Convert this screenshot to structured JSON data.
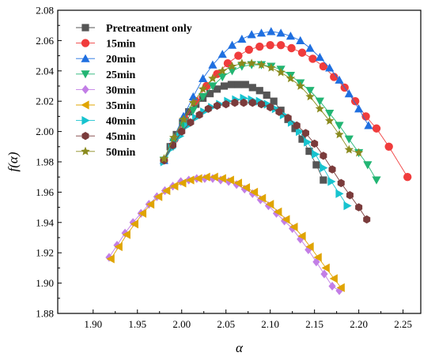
{
  "chart_data": {
    "type": "scatter",
    "title": "",
    "xlabel": "α",
    "ylabel": "f(α)",
    "xlim": [
      1.86,
      2.27
    ],
    "ylim": [
      1.88,
      2.08
    ],
    "xticks": [
      1.9,
      1.95,
      2.0,
      2.05,
      2.1,
      2.15,
      2.2,
      2.25
    ],
    "yticks": [
      1.88,
      1.9,
      1.92,
      1.94,
      1.96,
      1.98,
      2.0,
      2.02,
      2.04,
      2.06,
      2.08
    ],
    "xtick_labels": [
      "1.90",
      "1.95",
      "2.00",
      "2.05",
      "2.10",
      "2.15",
      "2.20",
      "2.25"
    ],
    "ytick_labels": [
      "1.88",
      "1.90",
      "1.92",
      "1.94",
      "1.96",
      "1.98",
      "2.00",
      "2.02",
      "2.04",
      "2.06",
      "2.08"
    ],
    "grid": false,
    "legend_position": "top-left",
    "series": [
      {
        "name": "Pretreatment only",
        "marker": "square",
        "color": "#555555",
        "x": [
          1.98,
          1.987,
          1.994,
          2.001,
          2.008,
          2.016,
          2.024,
          2.032,
          2.04,
          2.048,
          2.056,
          2.064,
          2.072,
          2.08,
          2.088,
          2.096,
          2.104,
          2.112,
          2.12,
          2.128,
          2.136,
          2.144,
          2.152,
          2.16
        ],
        "y": [
          1.981,
          1.99,
          1.998,
          2.006,
          2.013,
          2.018,
          2.022,
          2.025,
          2.028,
          2.03,
          2.031,
          2.031,
          2.031,
          2.029,
          2.027,
          2.024,
          2.02,
          2.014,
          2.008,
          2.002,
          1.995,
          1.987,
          1.978,
          1.968
        ]
      },
      {
        "name": "15min",
        "marker": "circle",
        "color": "#f03c3c",
        "x": [
          1.98,
          1.992,
          2.004,
          2.016,
          2.028,
          2.04,
          2.052,
          2.064,
          2.076,
          2.088,
          2.1,
          2.112,
          2.124,
          2.136,
          2.148,
          2.16,
          2.172,
          2.184,
          2.196,
          2.208,
          2.22,
          2.234,
          2.255
        ],
        "y": [
          1.981,
          1.995,
          2.008,
          2.02,
          2.03,
          2.038,
          2.045,
          2.05,
          2.054,
          2.056,
          2.057,
          2.057,
          2.055,
          2.052,
          2.048,
          2.043,
          2.036,
          2.029,
          2.02,
          2.01,
          2.002,
          1.99,
          1.97
        ]
      },
      {
        "name": "20min",
        "marker": "triangle-up",
        "color": "#1f6fe0",
        "x": [
          1.98,
          1.991,
          2.002,
          2.013,
          2.024,
          2.035,
          2.046,
          2.057,
          2.068,
          2.079,
          2.09,
          2.101,
          2.112,
          2.123,
          2.134,
          2.145,
          2.156,
          2.167,
          2.178,
          2.189,
          2.2,
          2.211
        ],
        "y": [
          1.981,
          1.996,
          2.01,
          2.023,
          2.035,
          2.044,
          2.051,
          2.057,
          2.061,
          2.064,
          2.065,
          2.066,
          2.065,
          2.063,
          2.06,
          2.055,
          2.049,
          2.042,
          2.034,
          2.025,
          2.015,
          2.004
        ]
      },
      {
        "name": "25min",
        "marker": "triangle-down",
        "color": "#22b573",
        "x": [
          1.98,
          1.991,
          2.002,
          2.013,
          2.024,
          2.035,
          2.046,
          2.057,
          2.068,
          2.079,
          2.09,
          2.101,
          2.112,
          2.123,
          2.134,
          2.145,
          2.156,
          2.167,
          2.178,
          2.189,
          2.2,
          2.21,
          2.22
        ],
        "y": [
          1.981,
          1.993,
          2.004,
          2.014,
          2.023,
          2.03,
          2.036,
          2.04,
          2.043,
          2.044,
          2.044,
          2.043,
          2.041,
          2.037,
          2.032,
          2.027,
          2.02,
          2.012,
          2.004,
          1.995,
          1.986,
          1.978,
          1.968
        ]
      },
      {
        "name": "30min",
        "marker": "diamond",
        "color": "#c27ee6",
        "x": [
          1.918,
          1.927,
          1.936,
          1.945,
          1.954,
          1.963,
          1.972,
          1.981,
          1.99,
          1.999,
          2.008,
          2.017,
          2.026,
          2.035,
          2.044,
          2.053,
          2.062,
          2.071,
          2.08,
          2.089,
          2.098,
          2.107,
          2.116,
          2.125,
          2.134,
          2.143,
          2.152,
          2.161,
          2.17,
          2.178
        ],
        "y": [
          1.917,
          1.925,
          1.933,
          1.94,
          1.946,
          1.952,
          1.957,
          1.961,
          1.964,
          1.967,
          1.968,
          1.969,
          1.969,
          1.969,
          1.968,
          1.967,
          1.965,
          1.962,
          1.959,
          1.955,
          1.951,
          1.946,
          1.941,
          1.936,
          1.929,
          1.922,
          1.914,
          1.906,
          1.898,
          1.895
        ]
      },
      {
        "name": "35min",
        "marker": "triangle-left",
        "color": "#e0a400",
        "x": [
          1.92,
          1.929,
          1.938,
          1.947,
          1.956,
          1.965,
          1.974,
          1.983,
          1.992,
          2.001,
          2.01,
          2.019,
          2.028,
          2.037,
          2.046,
          2.055,
          2.064,
          2.073,
          2.082,
          2.091,
          2.1,
          2.109,
          2.118,
          2.127,
          2.136,
          2.145,
          2.154,
          2.163,
          2.172,
          2.18
        ],
        "y": [
          1.916,
          1.924,
          1.932,
          1.939,
          1.946,
          1.952,
          1.957,
          1.961,
          1.964,
          1.966,
          1.968,
          1.969,
          1.97,
          1.97,
          1.969,
          1.968,
          1.966,
          1.963,
          1.96,
          1.956,
          1.952,
          1.947,
          1.942,
          1.937,
          1.931,
          1.924,
          1.917,
          1.91,
          1.903,
          1.897
        ]
      },
      {
        "name": "40min",
        "marker": "triangle-right",
        "color": "#17c3cf",
        "x": [
          1.98,
          1.989,
          1.998,
          2.007,
          2.016,
          2.025,
          2.034,
          2.043,
          2.052,
          2.061,
          2.07,
          2.079,
          2.088,
          2.097,
          2.106,
          2.115,
          2.124,
          2.133,
          2.142,
          2.151,
          2.16,
          2.169,
          2.178,
          2.187
        ],
        "y": [
          1.98,
          1.989,
          1.997,
          2.004,
          2.009,
          2.013,
          2.016,
          2.018,
          2.02,
          2.021,
          2.022,
          2.021,
          2.02,
          2.018,
          2.015,
          2.011,
          2.006,
          2.0,
          1.993,
          1.985,
          1.976,
          1.967,
          1.959,
          1.951
        ]
      },
      {
        "name": "45min",
        "marker": "hexagon",
        "color": "#7a3b3b",
        "x": [
          1.98,
          1.99,
          2.0,
          2.01,
          2.02,
          2.03,
          2.04,
          2.05,
          2.06,
          2.07,
          2.08,
          2.09,
          2.1,
          2.11,
          2.12,
          2.13,
          2.14,
          2.15,
          2.16,
          2.17,
          2.18,
          2.19,
          2.2,
          2.209
        ],
        "y": [
          1.981,
          1.991,
          2.0,
          2.006,
          2.011,
          2.015,
          2.017,
          2.018,
          2.019,
          2.019,
          2.019,
          2.018,
          2.016,
          2.013,
          2.009,
          2.004,
          1.999,
          1.992,
          1.984,
          1.975,
          1.966,
          1.958,
          1.95,
          1.942
        ]
      },
      {
        "name": "50min",
        "marker": "star",
        "color": "#8a8a1e",
        "x": [
          1.98,
          1.991,
          2.002,
          2.013,
          2.024,
          2.035,
          2.046,
          2.057,
          2.068,
          2.079,
          2.09,
          2.101,
          2.112,
          2.123,
          2.134,
          2.145,
          2.156,
          2.167,
          2.178,
          2.189,
          2.2
        ],
        "y": [
          1.982,
          1.996,
          2.008,
          2.019,
          2.028,
          2.035,
          2.04,
          2.043,
          2.045,
          2.045,
          2.044,
          2.042,
          2.039,
          2.035,
          2.03,
          2.023,
          2.015,
          2.007,
          1.998,
          1.988,
          1.986
        ]
      }
    ]
  }
}
